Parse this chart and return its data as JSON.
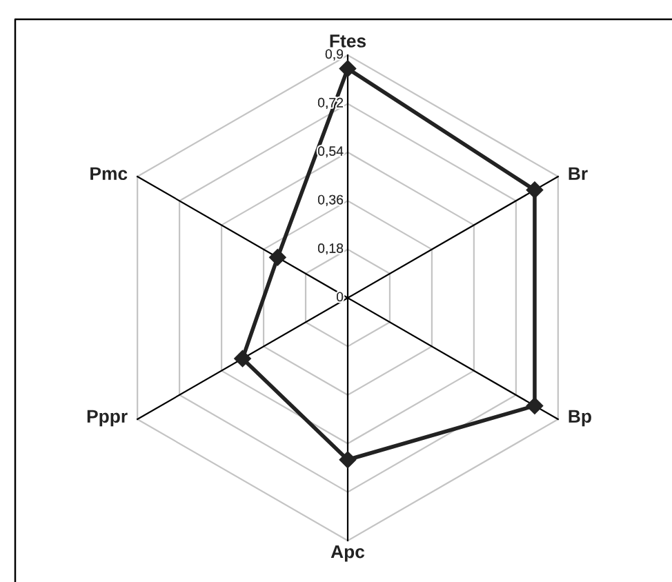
{
  "chart_data": {
    "type": "radar",
    "categories": [
      "Ftes",
      "Br",
      "Bp",
      "Apc",
      "Pppr",
      "Pmc"
    ],
    "series": [
      {
        "color": "#222222",
        "values": [
          0.85,
          0.8,
          0.8,
          0.6,
          0.45,
          0.3
        ]
      }
    ],
    "ylim": [
      0,
      0.9
    ],
    "yticks": [
      0,
      {
        "value": 0.18,
        "label": "0,18"
      },
      {
        "value": 0.36,
        "label": "0,36"
      },
      {
        "value": 0.54,
        "label": "0,54"
      },
      {
        "value": 0.72,
        "label": "0,72"
      },
      {
        "value": 0.9,
        "label": "0,9"
      }
    ],
    "grid": true,
    "marker": "diamond",
    "line_style": "solid"
  }
}
